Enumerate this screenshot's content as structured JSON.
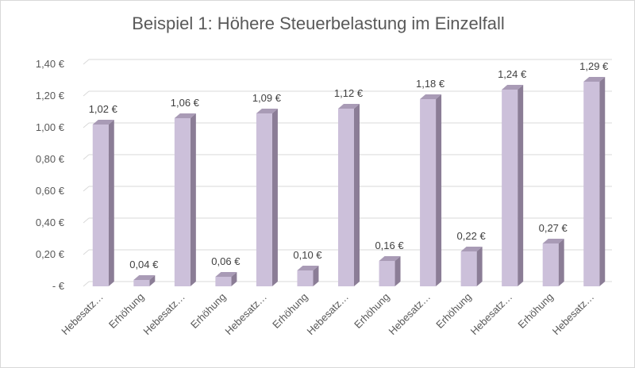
{
  "chart_data": {
    "type": "bar",
    "title": "Beispiel 1: Höhere Steuerbelastung im Einzelfall",
    "xlabel": "",
    "ylabel": "",
    "ylim": [
      0,
      1.4
    ],
    "yticks": [
      {
        "value": 0,
        "label": "-  €"
      },
      {
        "value": 0.2,
        "label": "0,20 €"
      },
      {
        "value": 0.4,
        "label": "0,40 €"
      },
      {
        "value": 0.6,
        "label": "0,60 €"
      },
      {
        "value": 0.8,
        "label": "0,80 €"
      },
      {
        "value": 1.0,
        "label": "1,00 €"
      },
      {
        "value": 1.2,
        "label": "1,20 €"
      },
      {
        "value": 1.4,
        "label": "1,40 €"
      }
    ],
    "categories": [
      "Hebesatz…",
      "Erhöhung",
      "Hebesatz…",
      "Erhöhung",
      "Hebesatz…",
      "Erhöhung",
      "Hebesatz…",
      "Erhöhung",
      "Hebesatz…",
      "Erhöhung",
      "Hebesatz…",
      "Erhöhung",
      "Hebesatz…"
    ],
    "values": [
      1.02,
      0.04,
      1.06,
      0.06,
      1.09,
      0.1,
      1.12,
      0.16,
      1.18,
      0.22,
      1.24,
      0.27,
      1.29
    ],
    "data_labels": [
      "1,02 €",
      "0,04 €",
      "1,06 €",
      "0,06 €",
      "1,09 €",
      "0,10 €",
      "1,12 €",
      "0,16 €",
      "1,18 €",
      "0,22 €",
      "1,24 €",
      "0,27 €",
      "1,29 €"
    ],
    "grid": true,
    "legend": "none",
    "colors": {
      "bar_front": "#ccc0da",
      "bar_side": "#8b7d96",
      "bar_top": "#a99bb6"
    }
  }
}
